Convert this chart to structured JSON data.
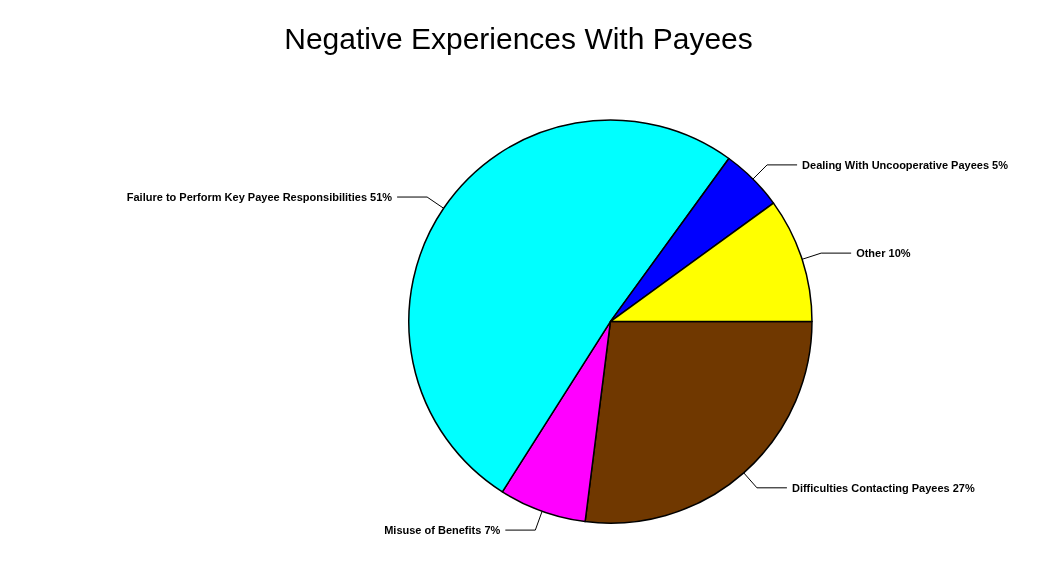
{
  "chart_data": {
    "type": "pie",
    "title": "Negative Experiences With Payees",
    "categories": [
      "Difficulties Contacting Payees",
      "Misuse of Benefits",
      "Failure to Perform Key Payee Responsibilities",
      "Dealing With Uncooperative Payees",
      "Other"
    ],
    "values": [
      27,
      7,
      51,
      5,
      10
    ],
    "colors": [
      "#703800",
      "#ff00ff",
      "#00ffff",
      "#0000ff",
      "#ffff00"
    ],
    "value_labels": [
      "27%",
      "7%",
      "51%",
      "5%",
      "10%"
    ],
    "legend": false
  }
}
